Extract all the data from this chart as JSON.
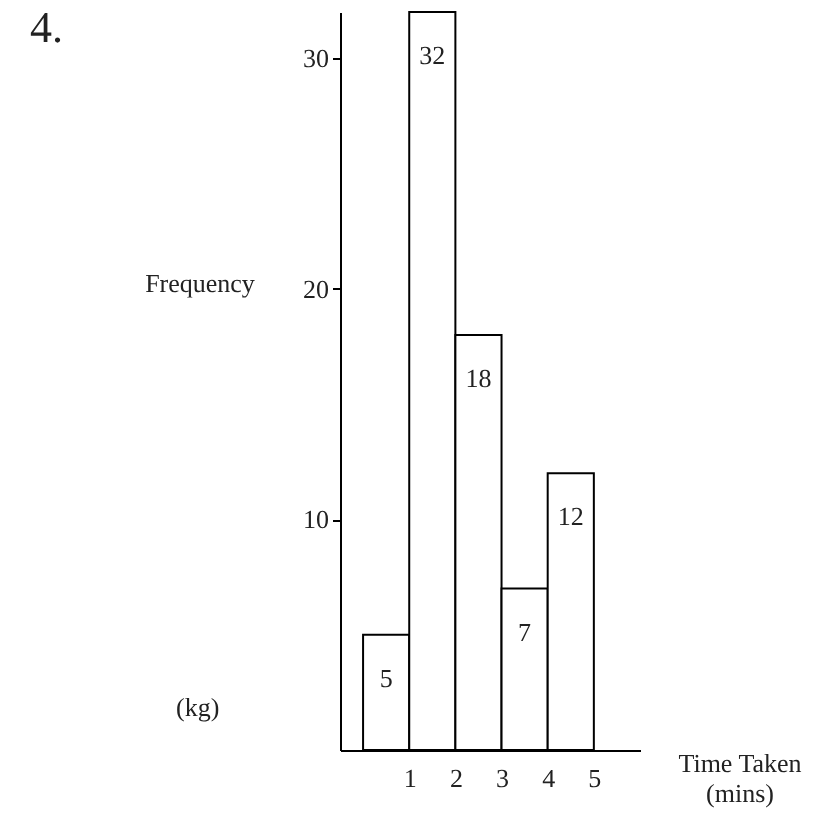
{
  "chart_data": {
    "type": "histogram",
    "title": "4.",
    "ylabel": "Frequency",
    "xlabel": "Time Taken\n(mins)",
    "annotations": [
      "(kg)"
    ],
    "bins": [
      0,
      1,
      2,
      3,
      4,
      5
    ],
    "values": [
      5,
      32,
      18,
      7,
      12
    ],
    "color": "#ffffff",
    "xlim": [
      -0.5,
      6
    ],
    "xticks": [
      1,
      2,
      3,
      4,
      5
    ],
    "ylim": [
      0,
      32
    ],
    "yticks": [
      10,
      20,
      30
    ],
    "data_labels": true,
    "grid": false
  }
}
